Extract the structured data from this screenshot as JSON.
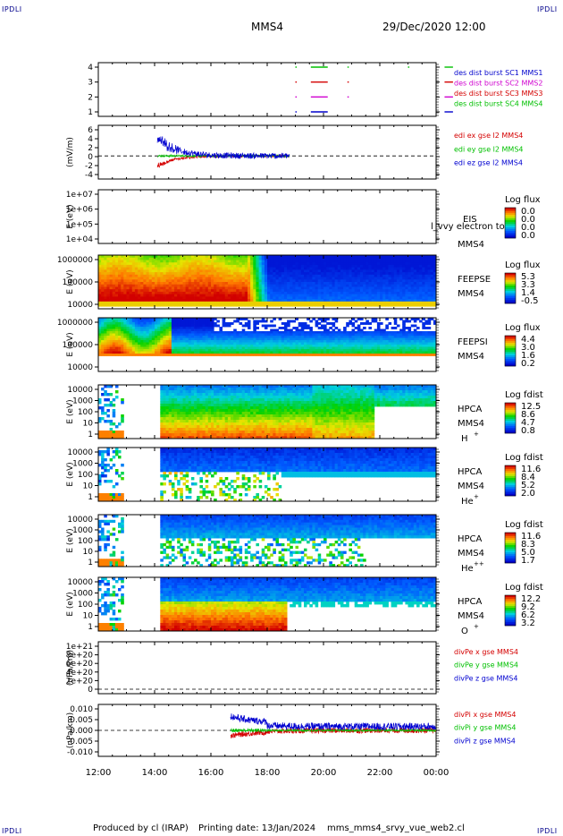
{
  "corners": {
    "tl": "IPDLI",
    "tr": "IPDLI",
    "bl": "IPDLI",
    "br": "IPDLI"
  },
  "header": {
    "spacecraft": "MMS4",
    "datetime": "29/Dec/2020 12:00"
  },
  "footer": {
    "credit": "Produced by cl (IRAP)",
    "printed": "Printing date: 13/Jan/2024",
    "script": "mms_mms4_srvy_vue_web2.cl"
  },
  "colors": {
    "red": "#d40000",
    "green": "#00c000",
    "blue": "#0000d0",
    "magenta": "#d000d0",
    "mms1": "#0000cc"
  },
  "chart_data": {
    "type": "multi-panel time series / spectrogram",
    "time_axis": {
      "start": "12:00",
      "end": "00:00",
      "ticks": [
        "12:00",
        "14:00",
        "16:00",
        "18:00",
        "20:00",
        "22:00",
        "00:00"
      ]
    },
    "panels": [
      {
        "id": "burst",
        "type": "timeline",
        "yticks": [
          "4",
          "3",
          "2",
          "1"
        ],
        "legend": [
          {
            "label": "des dist burst SC1 MMS1",
            "color": "#0000cc"
          },
          {
            "label": "des dist burst SC2 MMS2",
            "color": "#d000d0"
          },
          {
            "label": "des dist burst SC3 MMS3",
            "color": "#d40000"
          },
          {
            "label": "des dist burst SC4 MMS4",
            "color": "#00c000"
          }
        ],
        "segments": [
          {
            "sc": 4,
            "t": [
              19.0,
              19.05
            ]
          },
          {
            "sc": 4,
            "t": [
              19.55,
              20.15
            ]
          },
          {
            "sc": 4,
            "t": [
              20.85,
              20.9
            ]
          },
          {
            "sc": 4,
            "t": [
              23.0,
              23.05
            ]
          },
          {
            "sc": 4,
            "t": [
              24.3,
              24.6
            ]
          },
          {
            "sc": 3,
            "t": [
              19.0,
              19.05
            ]
          },
          {
            "sc": 3,
            "t": [
              19.55,
              20.15
            ]
          },
          {
            "sc": 3,
            "t": [
              20.85,
              20.9
            ]
          },
          {
            "sc": 3,
            "t": [
              24.3,
              24.6
            ]
          },
          {
            "sc": 2,
            "t": [
              19.0,
              19.05
            ]
          },
          {
            "sc": 2,
            "t": [
              19.55,
              20.15
            ]
          },
          {
            "sc": 2,
            "t": [
              20.85,
              20.9
            ]
          },
          {
            "sc": 2,
            "t": [
              24.3,
              24.6
            ]
          },
          {
            "sc": 1,
            "t": [
              19.0,
              19.05
            ]
          },
          {
            "sc": 1,
            "t": [
              19.55,
              20.15
            ]
          },
          {
            "sc": 1,
            "t": [
              24.3,
              24.6
            ]
          }
        ]
      },
      {
        "id": "edi",
        "type": "line",
        "ylabel": "(mV/m)",
        "yticks": [
          "6",
          "4",
          "2",
          "0",
          "-2",
          "-4"
        ],
        "ylim": [
          -5,
          7
        ],
        "legend": [
          {
            "label": "edi ex gse l2 MMS4",
            "color": "#d40000"
          },
          {
            "label": "edi ey gse l2 MMS4",
            "color": "#00c000"
          },
          {
            "label": "edi ez gse l2 MMS4",
            "color": "#0000d0"
          }
        ],
        "active_t": [
          14.1,
          18.8
        ]
      },
      {
        "id": "eis",
        "type": "empty-spectrogram",
        "ylabel": "E (eV)",
        "yticks": [
          "1e+07",
          "1e+06",
          "1e+05",
          "1e+04"
        ],
        "inst": "EIS",
        "overlay": "l_vvy electron to",
        "sc": "MMS4",
        "cbar_title": "Log flux",
        "cbar_ticks": [
          "0.0",
          "0.0",
          "0.0",
          "0.0"
        ]
      },
      {
        "id": "feepse",
        "type": "spectrogram",
        "ylabel": "E (eV)",
        "yticks": [
          "1000000",
          "100000",
          "10000"
        ],
        "inst": "FEEPSE",
        "sc": "MMS4",
        "cbar_title": "Log flux",
        "cbar_ticks": [
          "5.3",
          "3.3",
          "1.4",
          "-0.5"
        ]
      },
      {
        "id": "feepsi",
        "type": "spectrogram",
        "ylabel": "E (eV)",
        "yticks": [
          "1000000",
          "100000",
          "10000"
        ],
        "inst": "FEEPSI",
        "sc": "MMS4",
        "cbar_title": "Log flux",
        "cbar_ticks": [
          "4.4",
          "3.0",
          "1.6",
          "0.2"
        ]
      },
      {
        "id": "hpca_h",
        "type": "spectrogram",
        "ylabel": "E (eV)",
        "yticks": [
          "10000",
          "1000",
          "100",
          "10",
          "1"
        ],
        "inst": "HPCA",
        "sc": "MMS4",
        "species": "H",
        "charge": "+",
        "cbar_title": "Log fdist",
        "cbar_ticks": [
          "12.5",
          "8.6",
          "4.7",
          "0.8"
        ]
      },
      {
        "id": "hpca_he",
        "type": "spectrogram",
        "ylabel": "E (eV)",
        "yticks": [
          "10000",
          "1000",
          "100",
          "10",
          "1"
        ],
        "inst": "HPCA",
        "sc": "MMS4",
        "species": "He",
        "charge": "+",
        "cbar_title": "Log fdist",
        "cbar_ticks": [
          "11.6",
          "8.4",
          "5.2",
          "2.0"
        ]
      },
      {
        "id": "hpca_hepp",
        "type": "spectrogram",
        "ylabel": "E (eV)",
        "yticks": [
          "10000",
          "1000",
          "100",
          "10",
          "1"
        ],
        "inst": "HPCA",
        "sc": "MMS4",
        "species": "He",
        "charge": "++",
        "cbar_title": "Log fdist",
        "cbar_ticks": [
          "11.6",
          "8.3",
          "5.0",
          "1.7"
        ]
      },
      {
        "id": "hpca_o",
        "type": "spectrogram",
        "ylabel": "E (eV)",
        "yticks": [
          "10000",
          "1000",
          "100",
          "10",
          "1"
        ],
        "inst": "HPCA",
        "sc": "MMS4",
        "species": "O",
        "charge": "+",
        "cbar_title": "Log fdist",
        "cbar_ticks": [
          "12.2",
          "9.2",
          "6.2",
          "3.2"
        ]
      },
      {
        "id": "divpe",
        "type": "line",
        "ylabel": "(nPa/km)",
        "yticks": [
          "1e+21",
          "8e+20",
          "6e+20",
          "4e+20",
          "2e+20",
          "0"
        ],
        "ylim": [
          0,
          1.1e+21
        ],
        "legend": [
          {
            "label": "divPe x gse MMS4",
            "color": "#d40000"
          },
          {
            "label": "divPe y gse MMS4",
            "color": "#00c000"
          },
          {
            "label": "divPe z gse MMS4",
            "color": "#0000d0"
          }
        ]
      },
      {
        "id": "divpi",
        "type": "line",
        "ylabel": "(nPa/km)",
        "yticks": [
          "0.010",
          "0.005",
          "0.000",
          "-0.005",
          "-0.010"
        ],
        "ylim": [
          -0.012,
          0.012
        ],
        "legend": [
          {
            "label": "divPi x gse MMS4",
            "color": "#d40000"
          },
          {
            "label": "divPi y gse MMS4",
            "color": "#00c000"
          },
          {
            "label": "divPi z gse MMS4",
            "color": "#0000d0"
          }
        ],
        "active_t": [
          16.7,
          24.0
        ]
      }
    ]
  }
}
